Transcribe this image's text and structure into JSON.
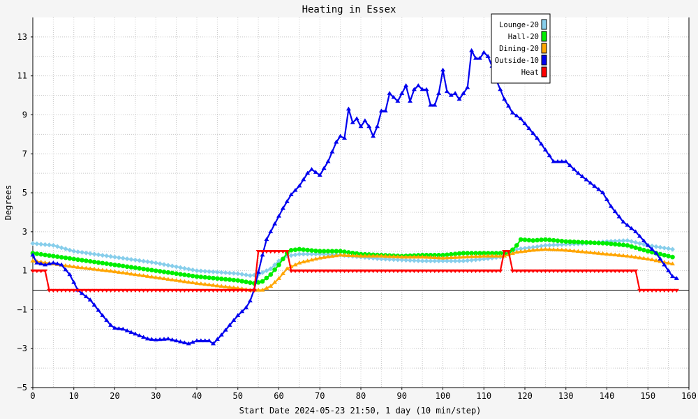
{
  "chart_data": {
    "type": "line",
    "title": "Heating in Essex",
    "xlabel": "Start Date 2024-05-23 21:50, 1 day (10 min/step)",
    "ylabel": "Degrees",
    "xlim": [
      0,
      160
    ],
    "ylim": [
      -5,
      14
    ],
    "x_ticks": [
      0,
      10,
      20,
      30,
      40,
      50,
      60,
      70,
      80,
      90,
      100,
      110,
      120,
      130,
      140,
      150,
      160
    ],
    "y_ticks": [
      -5,
      -3,
      -1,
      1,
      3,
      5,
      7,
      9,
      11,
      13
    ],
    "grid": true,
    "legend_position": "top-right",
    "series": [
      {
        "name": "Lounge-20",
        "color": "#87ceeb",
        "marker": "diamond",
        "points": [
          [
            0,
            2.4
          ],
          [
            5,
            2.3
          ],
          [
            10,
            2.0
          ],
          [
            20,
            1.7
          ],
          [
            30,
            1.4
          ],
          [
            40,
            1.0
          ],
          [
            50,
            0.85
          ],
          [
            53,
            0.75
          ],
          [
            55,
            0.8
          ],
          [
            58,
            1.1
          ],
          [
            60,
            1.5
          ],
          [
            62,
            1.75
          ],
          [
            65,
            1.85
          ],
          [
            70,
            1.85
          ],
          [
            75,
            1.8
          ],
          [
            80,
            1.7
          ],
          [
            85,
            1.6
          ],
          [
            90,
            1.55
          ],
          [
            95,
            1.5
          ],
          [
            100,
            1.5
          ],
          [
            105,
            1.5
          ],
          [
            110,
            1.6
          ],
          [
            114,
            1.7
          ],
          [
            118,
            2.1
          ],
          [
            122,
            2.2
          ],
          [
            125,
            2.3
          ],
          [
            130,
            2.35
          ],
          [
            135,
            2.4
          ],
          [
            140,
            2.5
          ],
          [
            145,
            2.55
          ],
          [
            150,
            2.3
          ],
          [
            156,
            2.1
          ]
        ]
      },
      {
        "name": "Hall-20",
        "color": "#00ee00",
        "marker": "circle",
        "points": [
          [
            0,
            1.9
          ],
          [
            5,
            1.75
          ],
          [
            10,
            1.6
          ],
          [
            20,
            1.3
          ],
          [
            30,
            1.0
          ],
          [
            40,
            0.7
          ],
          [
            50,
            0.5
          ],
          [
            54,
            0.35
          ],
          [
            56,
            0.45
          ],
          [
            58,
            0.8
          ],
          [
            60,
            1.3
          ],
          [
            62,
            1.9
          ],
          [
            63,
            2.05
          ],
          [
            65,
            2.1
          ],
          [
            70,
            2.0
          ],
          [
            75,
            2.0
          ],
          [
            80,
            1.85
          ],
          [
            85,
            1.8
          ],
          [
            90,
            1.75
          ],
          [
            95,
            1.8
          ],
          [
            100,
            1.8
          ],
          [
            105,
            1.9
          ],
          [
            110,
            1.9
          ],
          [
            115,
            1.9
          ],
          [
            116,
            1.85
          ],
          [
            118,
            2.3
          ],
          [
            119,
            2.6
          ],
          [
            122,
            2.55
          ],
          [
            125,
            2.6
          ],
          [
            130,
            2.5
          ],
          [
            135,
            2.45
          ],
          [
            140,
            2.4
          ],
          [
            145,
            2.3
          ],
          [
            150,
            2.0
          ],
          [
            156,
            1.7
          ]
        ]
      },
      {
        "name": "Dining-20",
        "color": "#ffa500",
        "marker": "triangle",
        "points": [
          [
            0,
            1.5
          ],
          [
            5,
            1.35
          ],
          [
            10,
            1.2
          ],
          [
            20,
            0.95
          ],
          [
            30,
            0.65
          ],
          [
            40,
            0.35
          ],
          [
            50,
            0.1
          ],
          [
            53,
            0.0
          ],
          [
            56,
            0.0
          ],
          [
            58,
            0.2
          ],
          [
            60,
            0.6
          ],
          [
            62,
            1.1
          ],
          [
            65,
            1.4
          ],
          [
            70,
            1.65
          ],
          [
            75,
            1.8
          ],
          [
            80,
            1.75
          ],
          [
            85,
            1.75
          ],
          [
            90,
            1.7
          ],
          [
            95,
            1.7
          ],
          [
            100,
            1.65
          ],
          [
            105,
            1.7
          ],
          [
            110,
            1.75
          ],
          [
            115,
            1.75
          ],
          [
            118,
            1.95
          ],
          [
            122,
            2.05
          ],
          [
            125,
            2.1
          ],
          [
            130,
            2.05
          ],
          [
            135,
            1.95
          ],
          [
            140,
            1.85
          ],
          [
            145,
            1.75
          ],
          [
            150,
            1.6
          ],
          [
            156,
            1.35
          ]
        ]
      },
      {
        "name": "Outside-10",
        "color": "#0000ee",
        "marker": "triangle",
        "points": [
          [
            0,
            1.8
          ],
          [
            1,
            1.4
          ],
          [
            3,
            1.3
          ],
          [
            5,
            1.4
          ],
          [
            7,
            1.3
          ],
          [
            9,
            0.8
          ],
          [
            11,
            0.0
          ],
          [
            14,
            -0.5
          ],
          [
            17,
            -1.3
          ],
          [
            19,
            -1.8
          ],
          [
            20,
            -1.95
          ],
          [
            22,
            -2.0
          ],
          [
            25,
            -2.25
          ],
          [
            28,
            -2.5
          ],
          [
            30,
            -2.55
          ],
          [
            33,
            -2.5
          ],
          [
            36,
            -2.65
          ],
          [
            38,
            -2.75
          ],
          [
            40,
            -2.6
          ],
          [
            43,
            -2.6
          ],
          [
            44,
            -2.75
          ],
          [
            46,
            -2.3
          ],
          [
            48,
            -1.8
          ],
          [
            50,
            -1.3
          ],
          [
            52,
            -0.9
          ],
          [
            53,
            -0.55
          ],
          [
            54,
            0.05
          ],
          [
            56,
            1.8
          ],
          [
            57,
            2.6
          ],
          [
            59,
            3.4
          ],
          [
            61,
            4.2
          ],
          [
            63,
            4.9
          ],
          [
            65,
            5.35
          ],
          [
            67,
            6.0
          ],
          [
            68,
            6.2
          ],
          [
            70,
            5.9
          ],
          [
            72,
            6.6
          ],
          [
            74,
            7.6
          ],
          [
            75,
            7.9
          ],
          [
            76,
            7.8
          ],
          [
            77,
            9.3
          ],
          [
            78,
            8.6
          ],
          [
            79,
            8.8
          ],
          [
            80,
            8.4
          ],
          [
            81,
            8.7
          ],
          [
            82,
            8.4
          ],
          [
            83,
            7.9
          ],
          [
            84,
            8.4
          ],
          [
            85,
            9.2
          ],
          [
            86,
            9.2
          ],
          [
            87,
            10.1
          ],
          [
            88,
            9.9
          ],
          [
            89,
            9.7
          ],
          [
            90,
            10.1
          ],
          [
            91,
            10.5
          ],
          [
            92,
            9.7
          ],
          [
            93,
            10.3
          ],
          [
            94,
            10.5
          ],
          [
            95,
            10.3
          ],
          [
            96,
            10.3
          ],
          [
            97,
            9.5
          ],
          [
            98,
            9.5
          ],
          [
            99,
            10.1
          ],
          [
            100,
            11.3
          ],
          [
            101,
            10.2
          ],
          [
            102,
            10.0
          ],
          [
            103,
            10.1
          ],
          [
            104,
            9.8
          ],
          [
            105,
            10.1
          ],
          [
            106,
            10.4
          ],
          [
            107,
            12.3
          ],
          [
            108,
            11.9
          ],
          [
            109,
            11.9
          ],
          [
            110,
            12.2
          ],
          [
            111,
            12.0
          ],
          [
            112,
            11.5
          ],
          [
            113,
            10.8
          ],
          [
            115,
            9.8
          ],
          [
            117,
            9.1
          ],
          [
            119,
            8.8
          ],
          [
            121,
            8.3
          ],
          [
            123,
            7.8
          ],
          [
            125,
            7.2
          ],
          [
            127,
            6.6
          ],
          [
            130,
            6.6
          ],
          [
            133,
            6.0
          ],
          [
            136,
            5.5
          ],
          [
            139,
            5.0
          ],
          [
            141,
            4.3
          ],
          [
            144,
            3.5
          ],
          [
            147,
            3.0
          ],
          [
            150,
            2.3
          ],
          [
            152,
            1.9
          ],
          [
            154,
            1.3
          ],
          [
            156,
            0.7
          ],
          [
            157,
            0.6
          ]
        ]
      },
      {
        "name": "Heat",
        "color": "#ff0000",
        "marker": "triangle-down",
        "points": [
          [
            0,
            1
          ],
          [
            3,
            1
          ],
          [
            4,
            0
          ],
          [
            54,
            0
          ],
          [
            55,
            2
          ],
          [
            62,
            2
          ],
          [
            63,
            1
          ],
          [
            114,
            1
          ],
          [
            115,
            2
          ],
          [
            116,
            2
          ],
          [
            117,
            1
          ],
          [
            147,
            1
          ],
          [
            148,
            0
          ],
          [
            157,
            0
          ]
        ]
      }
    ]
  }
}
